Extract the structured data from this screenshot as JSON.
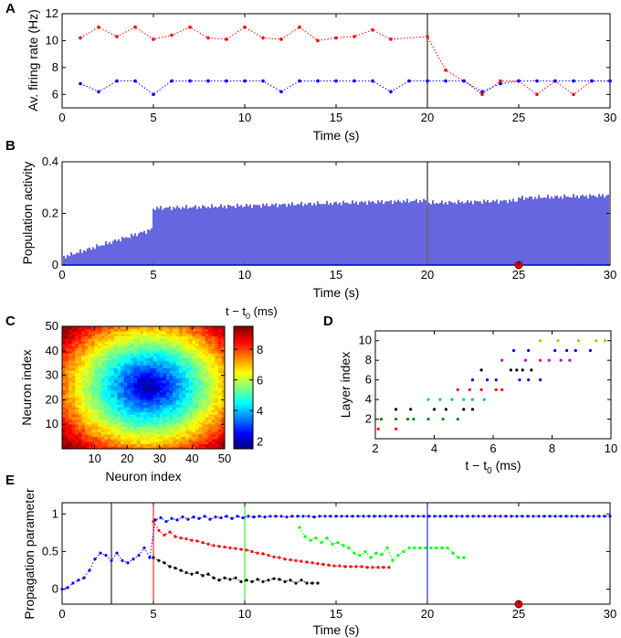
{
  "chart_data": [
    {
      "panel": "A",
      "type": "line",
      "xlabel": "Time (s)",
      "ylabel": "Av. firing rate (Hz)",
      "xlim": [
        0,
        30
      ],
      "ylim": [
        5,
        12
      ],
      "xticks": [
        "0",
        "5",
        "10",
        "15",
        "20",
        "25",
        "30"
      ],
      "yticks": [
        "6",
        "8",
        "10",
        "12"
      ],
      "vline_x": 20,
      "series": [
        {
          "name": "red",
          "color": "#ff0000",
          "x": [
            1,
            2,
            3,
            4,
            5,
            6,
            7,
            8,
            9,
            10,
            11,
            12,
            13,
            14,
            15,
            16,
            17,
            18,
            20,
            21,
            22,
            23,
            24,
            25,
            26,
            27,
            28,
            29,
            30
          ],
          "y": [
            10.2,
            11.0,
            10.3,
            11.0,
            10.1,
            10.4,
            11.0,
            10.2,
            10.1,
            11.0,
            10.2,
            10.1,
            11.0,
            10.0,
            10.2,
            10.3,
            10.8,
            10.1,
            10.3,
            7.8,
            7.0,
            6.0,
            7.0,
            7.0,
            6.0,
            7.0,
            6.0,
            7.0,
            7.0
          ]
        },
        {
          "name": "blue",
          "color": "#0000ff",
          "x": [
            1,
            2,
            3,
            4,
            5,
            6,
            7,
            8,
            9,
            10,
            11,
            12,
            13,
            14,
            15,
            16,
            17,
            18,
            19,
            20,
            21,
            22,
            23,
            24,
            25,
            26,
            27,
            28,
            29,
            30
          ],
          "y": [
            6.8,
            6.2,
            7.0,
            7.0,
            6.0,
            7.0,
            7.0,
            7.0,
            7.0,
            7.0,
            7.0,
            6.2,
            7.0,
            7.0,
            7.0,
            7.0,
            7.0,
            6.2,
            7.0,
            7.0,
            7.0,
            7.0,
            6.2,
            6.8,
            7.0,
            7.0,
            7.0,
            7.0,
            7.0,
            7.0
          ]
        }
      ]
    },
    {
      "panel": "B",
      "type": "bar",
      "xlabel": "Time (s)",
      "ylabel": "Population activity",
      "xlim": [
        0,
        30
      ],
      "ylim": [
        0,
        0.4
      ],
      "xticks": [
        "0",
        "5",
        "10",
        "15",
        "20",
        "25",
        "30"
      ],
      "yticks": [
        "0",
        "0.2",
        "0.4"
      ],
      "vline_x": 20,
      "marker_x": 25,
      "bar_interval_s": 0.1,
      "activity_levels": [
        {
          "from": 0,
          "to": 5,
          "start": 0.03,
          "end": 0.14
        },
        {
          "from": 5,
          "to": 20,
          "start": 0.22,
          "end": 0.25
        },
        {
          "from": 20,
          "to": 25,
          "start": 0.24,
          "end": 0.25
        },
        {
          "from": 25,
          "to": 30,
          "start": 0.26,
          "end": 0.27
        }
      ]
    },
    {
      "panel": "C",
      "type": "heatmap",
      "xlabel": "Neuron index",
      "ylabel": "Neuron index",
      "colorbar_label_base": "t − t",
      "colorbar_label_sub": "0",
      "colorbar_label_unit": " (ms)",
      "xlim": [
        0,
        50
      ],
      "ylim": [
        0,
        50
      ],
      "xticks": [
        "10",
        "20",
        "30",
        "40",
        "50"
      ],
      "yticks": [
        "10",
        "20",
        "30",
        "40",
        "50"
      ],
      "clim": [
        1.5,
        9.5
      ],
      "cticks": [
        "2",
        "4",
        "6",
        "8"
      ],
      "center": [
        27,
        26
      ],
      "value_at_center": 1.6,
      "value_at_corner": 9.3
    },
    {
      "panel": "D",
      "type": "scatter",
      "xlabel_base": "t − t",
      "xlabel_sub": "0",
      "xlabel_unit": " (ms)",
      "ylabel": "Layer index",
      "xlim": [
        2,
        10
      ],
      "ylim": [
        0,
        11
      ],
      "xticks": [
        "2",
        "4",
        "6",
        "8",
        "10"
      ],
      "yticks": [
        "2",
        "4",
        "6",
        "8",
        "10"
      ],
      "layer_colors": [
        "#ff0000",
        "#008000",
        "#000000",
        "#00bfbf",
        "#ff0000",
        "#0000ff",
        "#000000",
        "#bf00bf",
        "#0000ff",
        "#bfbf00"
      ],
      "points": [
        [
          2.1,
          1
        ],
        [
          2.2,
          2
        ],
        [
          2.7,
          2
        ],
        [
          2.7,
          3
        ],
        [
          2.7,
          1
        ],
        [
          3.1,
          2
        ],
        [
          3.2,
          3
        ],
        [
          3.3,
          2
        ],
        [
          3.8,
          2
        ],
        [
          3.8,
          4
        ],
        [
          4.0,
          3
        ],
        [
          4.2,
          4
        ],
        [
          4.3,
          2
        ],
        [
          4.4,
          3
        ],
        [
          4.6,
          4
        ],
        [
          4.8,
          5
        ],
        [
          4.8,
          2
        ],
        [
          5.0,
          3
        ],
        [
          5.0,
          4
        ],
        [
          5.2,
          5
        ],
        [
          5.3,
          6
        ],
        [
          5.3,
          3
        ],
        [
          5.3,
          4
        ],
        [
          5.6,
          7
        ],
        [
          5.6,
          5
        ],
        [
          5.7,
          4
        ],
        [
          5.8,
          6
        ],
        [
          6.1,
          6
        ],
        [
          6.1,
          5
        ],
        [
          6.3,
          8
        ],
        [
          6.3,
          5
        ],
        [
          6.6,
          7
        ],
        [
          6.7,
          9
        ],
        [
          6.8,
          7
        ],
        [
          6.9,
          6
        ],
        [
          7.0,
          7
        ],
        [
          7.1,
          8
        ],
        [
          7.2,
          6
        ],
        [
          7.2,
          9
        ],
        [
          7.3,
          7
        ],
        [
          7.6,
          10
        ],
        [
          7.6,
          8
        ],
        [
          7.6,
          6
        ],
        [
          7.9,
          8
        ],
        [
          8.1,
          9
        ],
        [
          8.2,
          10
        ],
        [
          8.3,
          8
        ],
        [
          8.5,
          9
        ],
        [
          8.6,
          8
        ],
        [
          8.8,
          9
        ],
        [
          8.9,
          10
        ],
        [
          9.3,
          9
        ],
        [
          9.5,
          10
        ],
        [
          9.8,
          10
        ]
      ]
    },
    {
      "panel": "E",
      "type": "line",
      "xlabel": "Time (s)",
      "ylabel": "Propagation parameter",
      "xlim": [
        0,
        30
      ],
      "ylim": [
        -0.2,
        1.15
      ],
      "xticks": [
        "0",
        "5",
        "10",
        "15",
        "20",
        "25",
        "30"
      ],
      "yticks": [
        "0",
        "0.5",
        "1"
      ],
      "marker_x": 25,
      "vlines": [
        {
          "x": 2.7,
          "color": "#000000"
        },
        {
          "x": 5.0,
          "color": "#ff0000"
        },
        {
          "x": 10.0,
          "color": "#00ff00"
        },
        {
          "x": 20.0,
          "color": "#0000ff"
        }
      ],
      "series": [
        {
          "name": "blue",
          "color": "#0000ff",
          "x": [
            0.0,
            0.3,
            0.6,
            0.9,
            1.2,
            1.5,
            1.8,
            2.1,
            2.4,
            2.7,
            3.0,
            3.3,
            3.6,
            3.9,
            4.2,
            4.5,
            4.8,
            5.1,
            5.4,
            5.7,
            6.0,
            6.3,
            6.6,
            6.9,
            7.2,
            7.5,
            7.8,
            8.1,
            8.4,
            8.7,
            9.0,
            9.3,
            9.6,
            9.9,
            10.2,
            10.5,
            10.8,
            11.1,
            11.4,
            11.7,
            12.0,
            12.3,
            12.6,
            12.9,
            13.2,
            13.5,
            13.8,
            14.1,
            14.4,
            14.7,
            15.0,
            15.3,
            15.6,
            15.9,
            16.2,
            16.5,
            16.8,
            17.1,
            17.4,
            17.7,
            18.0,
            18.3,
            18.6,
            18.9,
            19.2,
            19.5,
            19.8,
            20.1,
            20.4,
            20.7,
            21.0,
            21.3,
            21.6,
            21.9,
            22.2,
            22.5,
            22.8,
            23.1,
            23.4,
            23.7,
            24.0,
            24.3,
            24.6,
            24.9,
            25.2,
            25.5,
            25.8,
            26.1,
            26.4,
            26.7,
            27.0,
            27.3,
            27.6,
            27.9,
            28.2,
            28.5,
            28.8,
            29.1,
            29.4,
            29.7,
            30.0
          ],
          "y": [
            0.0,
            0.02,
            0.08,
            0.12,
            0.15,
            0.25,
            0.4,
            0.48,
            0.45,
            0.38,
            0.48,
            0.38,
            0.35,
            0.4,
            0.45,
            0.55,
            0.42,
            0.92,
            0.95,
            0.9,
            0.94,
            0.92,
            0.96,
            0.93,
            0.96,
            0.94,
            0.97,
            0.93,
            0.96,
            0.95,
            0.97,
            0.94,
            0.97,
            0.95,
            0.97,
            0.96,
            0.97,
            0.96,
            0.97,
            0.97,
            0.97,
            0.96,
            0.97,
            0.97,
            0.97,
            0.97,
            0.96,
            0.97,
            0.97,
            0.97,
            0.97,
            0.97,
            0.97,
            0.97,
            0.97,
            0.97,
            0.97,
            0.97,
            0.97,
            0.97,
            0.97,
            0.97,
            0.97,
            0.97,
            0.97,
            0.97,
            0.97,
            0.97,
            0.97,
            0.97,
            0.97,
            0.97,
            0.97,
            0.97,
            0.97,
            0.97,
            0.97,
            0.97,
            0.97,
            0.97,
            0.97,
            0.97,
            0.97,
            0.97,
            0.97,
            0.97,
            0.97,
            0.97,
            0.97,
            0.97,
            0.97,
            0.97,
            0.97,
            0.97,
            0.97,
            0.97,
            0.97,
            0.97,
            0.97,
            0.97,
            0.97
          ]
        },
        {
          "name": "red",
          "color": "#ff0000",
          "x": [
            5.0,
            5.3,
            5.6,
            5.9,
            6.2,
            6.5,
            6.8,
            7.1,
            7.4,
            7.7,
            8.0,
            8.3,
            8.6,
            8.9,
            9.2,
            9.5,
            9.8,
            10.1,
            10.4,
            10.7,
            11.0,
            11.3,
            11.6,
            11.9,
            12.2,
            12.5,
            12.8,
            13.1,
            13.4,
            13.7,
            14.0,
            14.3,
            14.6,
            14.9,
            15.2,
            15.5,
            15.8,
            16.1,
            16.4,
            16.7,
            17.0,
            17.3,
            17.6,
            17.9
          ],
          "y": [
            0.9,
            0.78,
            0.72,
            0.76,
            0.7,
            0.68,
            0.67,
            0.65,
            0.64,
            0.62,
            0.6,
            0.58,
            0.57,
            0.56,
            0.55,
            0.54,
            0.53,
            0.52,
            0.5,
            0.48,
            0.47,
            0.45,
            0.43,
            0.42,
            0.4,
            0.39,
            0.38,
            0.37,
            0.36,
            0.35,
            0.34,
            0.33,
            0.32,
            0.31,
            0.31,
            0.3,
            0.3,
            0.3,
            0.3,
            0.29,
            0.29,
            0.29,
            0.29,
            0.29
          ]
        },
        {
          "name": "black",
          "color": "#000000",
          "x": [
            5.0,
            5.3,
            5.6,
            5.9,
            6.2,
            6.5,
            6.8,
            7.1,
            7.4,
            7.7,
            8.0,
            8.3,
            8.6,
            8.9,
            9.2,
            9.5,
            9.8,
            10.1,
            10.4,
            10.7,
            11.0,
            11.3,
            11.6,
            11.9,
            12.2,
            12.5,
            12.8,
            13.1,
            13.4,
            13.7,
            14.0
          ],
          "y": [
            0.42,
            0.38,
            0.35,
            0.3,
            0.28,
            0.25,
            0.22,
            0.2,
            0.22,
            0.18,
            0.2,
            0.15,
            0.12,
            0.15,
            0.13,
            0.15,
            0.1,
            0.12,
            0.1,
            0.13,
            0.1,
            0.12,
            0.14,
            0.13,
            0.1,
            0.12,
            0.08,
            0.12,
            0.08,
            0.08,
            0.08
          ]
        },
        {
          "name": "green",
          "color": "#00ff00",
          "x": [
            13.0,
            13.3,
            13.6,
            13.9,
            14.2,
            14.5,
            14.8,
            15.1,
            15.4,
            15.7,
            16.0,
            16.3,
            16.6,
            16.9,
            17.2,
            17.5,
            17.8,
            18.1,
            18.4,
            18.7,
            19.0,
            19.3,
            19.6,
            19.9,
            20.2,
            20.5,
            20.8,
            21.1,
            21.4,
            21.7,
            22.0
          ],
          "y": [
            0.82,
            0.7,
            0.65,
            0.68,
            0.62,
            0.68,
            0.6,
            0.62,
            0.58,
            0.55,
            0.48,
            0.45,
            0.5,
            0.42,
            0.48,
            0.46,
            0.55,
            0.38,
            0.45,
            0.5,
            0.55,
            0.55,
            0.55,
            0.55,
            0.55,
            0.55,
            0.55,
            0.55,
            0.48,
            0.42,
            0.42
          ]
        }
      ]
    }
  ]
}
